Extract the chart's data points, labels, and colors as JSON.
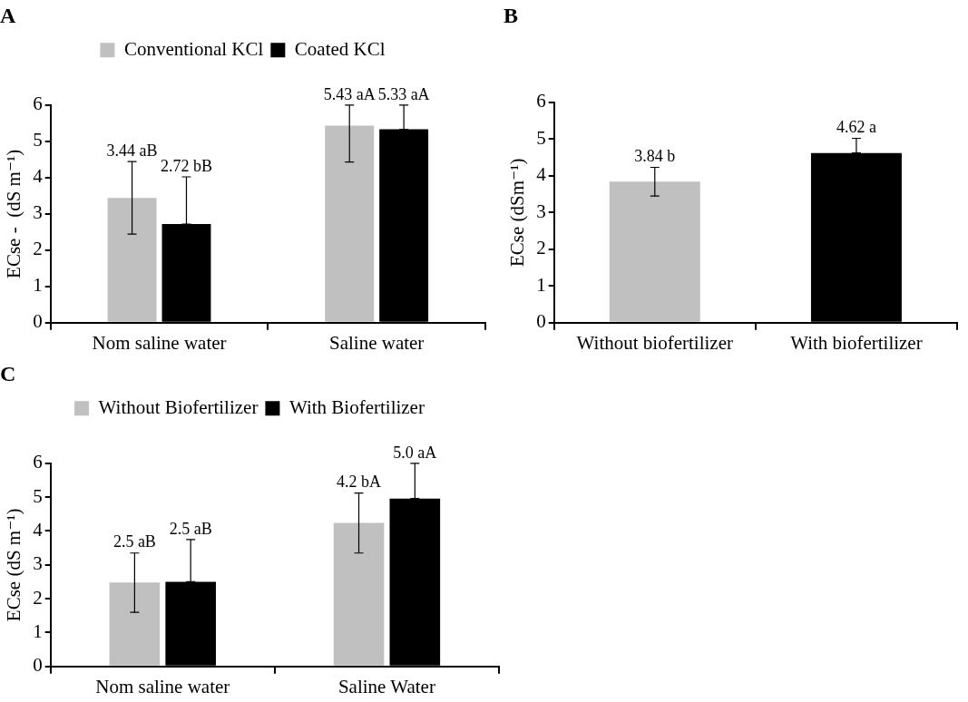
{
  "chart_data": [
    {
      "type": "bar",
      "title": "A",
      "ylabel": "ECse -  (dS m⁻¹)",
      "categories": [
        "Nom saline water",
        "Saline water"
      ],
      "ylim": [
        0,
        6
      ],
      "yticks": [
        0,
        1,
        2,
        3,
        4,
        5,
        6
      ],
      "legend": "top",
      "series": [
        {
          "name": "Conventional KCl",
          "color": "#c0c0c0",
          "values": [
            3.44,
            5.43
          ],
          "errors": [
            [
              2.44,
              4.44
            ],
            [
              4.43,
              6
            ]
          ],
          "value_labels": [
            "3.44 aB",
            "5.43 aA"
          ]
        },
        {
          "name": "Coated KCl",
          "color": "#000000",
          "values": [
            2.72,
            5.33
          ],
          "errors": [
            [
              2.72,
              4.02
            ],
            [
              5.33,
              6
            ]
          ],
          "value_labels": [
            "2.72 bB",
            "5.33 aA"
          ]
        }
      ]
    },
    {
      "type": "bar",
      "title": "B",
      "ylabel": "ECse (dSm⁻¹)",
      "categories": [
        "Without biofertilizer",
        "With biofertilizer"
      ],
      "ylim": [
        0,
        6
      ],
      "yticks": [
        0,
        1,
        2,
        3,
        4,
        5,
        6
      ],
      "values": [
        3.84,
        4.62
      ],
      "colors": [
        "#c0c0c0",
        "#000000"
      ],
      "errors": [
        [
          3.45,
          4.23
        ],
        [
          4.62,
          5.02
        ]
      ],
      "value_labels": [
        "3.84 b",
        "4.62 a"
      ]
    },
    {
      "type": "bar",
      "title": "C",
      "ylabel": "ECse (dS m⁻¹)",
      "categories": [
        "Nom saline water",
        "Saline Water"
      ],
      "ylim": [
        0,
        6
      ],
      "yticks": [
        0,
        1,
        2,
        3,
        4,
        5,
        6
      ],
      "legend": "top",
      "series": [
        {
          "name": "Without Biofertilizer",
          "color": "#c0c0c0",
          "values": [
            2.48,
            4.24
          ],
          "errors": [
            [
              1.6,
              3.35
            ],
            [
              3.35,
              5.12
            ]
          ],
          "value_labels": [
            "2.5 aB",
            "4.2 bA"
          ]
        },
        {
          "name": "With Biofertilizer",
          "color": "#000000",
          "values": [
            2.5,
            4.96
          ],
          "errors": [
            [
              2.5,
              3.75
            ],
            [
              4.96,
              6
            ]
          ],
          "value_labels": [
            "2.5 aB",
            "5.0 aA"
          ]
        }
      ]
    }
  ]
}
